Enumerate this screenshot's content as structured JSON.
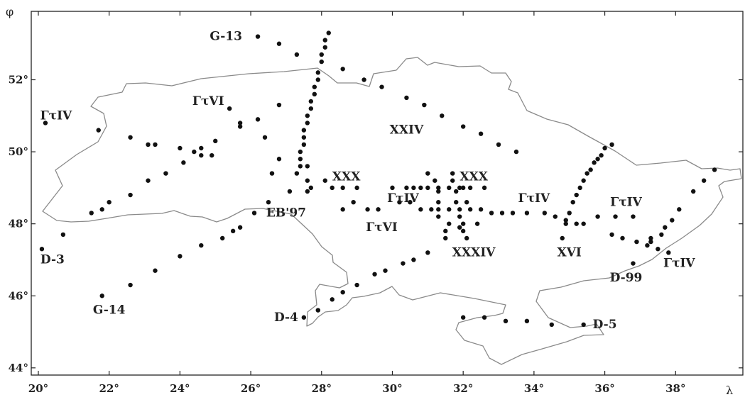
{
  "map": {
    "x_axis_name": "λ",
    "y_axis_name": "φ",
    "lon_range": [
      19.8,
      39.9
    ],
    "lat_range": [
      43.8,
      53.9
    ],
    "lon_ticks": [
      {
        "value": 20,
        "label": "20°"
      },
      {
        "value": 22,
        "label": "22°"
      },
      {
        "value": 24,
        "label": "24°"
      },
      {
        "value": 26,
        "label": "26°"
      },
      {
        "value": 28,
        "label": "28°"
      },
      {
        "value": 30,
        "label": "30°"
      },
      {
        "value": 32,
        "label": "32°"
      },
      {
        "value": 34,
        "label": "34°"
      },
      {
        "value": 36,
        "label": "36°"
      },
      {
        "value": 38,
        "label": "38°"
      }
    ],
    "lat_ticks": [
      {
        "value": 44,
        "label": "44°"
      },
      {
        "value": 46,
        "label": "46°"
      },
      {
        "value": 48,
        "label": "48°"
      },
      {
        "value": 50,
        "label": "50°"
      },
      {
        "value": 52,
        "label": "52°"
      }
    ],
    "colors": {
      "border": "#8a8a8a",
      "stations": "#111111",
      "frame": "#222222"
    }
  },
  "profiles": [
    {
      "label": "G-13",
      "lon": 25.3,
      "lat": 53.1
    },
    {
      "label": "ΓτIV",
      "lon": 20.5,
      "lat": 50.9
    },
    {
      "label": "ΓτVI",
      "lon": 24.8,
      "lat": 51.3
    },
    {
      "label": "XXIV",
      "lon": 30.4,
      "lat": 50.5
    },
    {
      "label": "XXX",
      "lon": 28.7,
      "lat": 49.2
    },
    {
      "label": "XXX",
      "lon": 32.3,
      "lat": 49.2
    },
    {
      "label": "ΓτIV",
      "lon": 30.3,
      "lat": 48.6
    },
    {
      "label": "ΓτIV",
      "lon": 34.0,
      "lat": 48.6
    },
    {
      "label": "ΓτIV",
      "lon": 36.6,
      "lat": 48.5
    },
    {
      "label": "EB'97",
      "lon": 27.0,
      "lat": 48.2
    },
    {
      "label": "ΓτVI",
      "lon": 29.7,
      "lat": 47.8
    },
    {
      "label": "XXXIV",
      "lon": 32.3,
      "lat": 47.1
    },
    {
      "label": "XVI",
      "lon": 35.0,
      "lat": 47.1
    },
    {
      "label": "D-3",
      "lon": 20.4,
      "lat": 46.9
    },
    {
      "label": "D-99",
      "lon": 36.6,
      "lat": 46.4
    },
    {
      "label": "ΓτIV",
      "lon": 38.1,
      "lat": 46.8
    },
    {
      "label": "G-14",
      "lon": 22.0,
      "lat": 45.5
    },
    {
      "label": "D-4",
      "lon": 27.0,
      "lat": 45.3
    },
    {
      "label": "D-5",
      "lon": 36.0,
      "lat": 45.1
    }
  ],
  "stations": [
    [
      20.2,
      50.8
    ],
    [
      20.1,
      47.3
    ],
    [
      20.7,
      47.7
    ],
    [
      21.5,
      48.3
    ],
    [
      21.8,
      48.4
    ],
    [
      22.0,
      48.6
    ],
    [
      22.6,
      48.8
    ],
    [
      23.1,
      49.2
    ],
    [
      23.6,
      49.4
    ],
    [
      24.1,
      49.7
    ],
    [
      24.6,
      49.9
    ],
    [
      24.9,
      49.9
    ],
    [
      25.0,
      50.3
    ],
    [
      25.7,
      50.7
    ],
    [
      26.2,
      50.9
    ],
    [
      26.4,
      50.4
    ],
    [
      26.6,
      49.4
    ],
    [
      26.8,
      49.8
    ],
    [
      27.1,
      48.9
    ],
    [
      27.6,
      48.9
    ],
    [
      21.7,
      50.6
    ],
    [
      22.6,
      50.4
    ],
    [
      23.1,
      50.2
    ],
    [
      23.3,
      50.2
    ],
    [
      24.0,
      50.1
    ],
    [
      24.4,
      50.0
    ],
    [
      24.6,
      50.1
    ],
    [
      25.4,
      51.2
    ],
    [
      25.7,
      50.8
    ],
    [
      26.8,
      51.3
    ],
    [
      21.8,
      46.0
    ],
    [
      22.6,
      46.3
    ],
    [
      23.3,
      46.7
    ],
    [
      24.0,
      47.1
    ],
    [
      24.6,
      47.4
    ],
    [
      25.2,
      47.6
    ],
    [
      25.5,
      47.8
    ],
    [
      25.7,
      47.9
    ],
    [
      26.1,
      48.3
    ],
    [
      26.5,
      48.6
    ],
    [
      26.2,
      53.2
    ],
    [
      26.8,
      53.0
    ],
    [
      27.3,
      52.7
    ],
    [
      28.6,
      52.3
    ],
    [
      29.2,
      52.0
    ],
    [
      29.7,
      51.8
    ],
    [
      30.4,
      51.5
    ],
    [
      30.9,
      51.3
    ],
    [
      31.4,
      51.0
    ],
    [
      32.0,
      50.7
    ],
    [
      32.5,
      50.5
    ],
    [
      33.0,
      50.2
    ],
    [
      33.5,
      50.0
    ],
    [
      28.2,
      53.3
    ],
    [
      28.1,
      53.1
    ],
    [
      28.1,
      52.9
    ],
    [
      28.0,
      52.7
    ],
    [
      28.0,
      52.5
    ],
    [
      27.9,
      52.2
    ],
    [
      27.9,
      52.0
    ],
    [
      27.8,
      51.8
    ],
    [
      27.8,
      51.6
    ],
    [
      27.7,
      51.4
    ],
    [
      27.7,
      51.2
    ],
    [
      27.6,
      51.0
    ],
    [
      27.6,
      50.8
    ],
    [
      27.5,
      50.6
    ],
    [
      27.5,
      50.4
    ],
    [
      27.5,
      50.2
    ],
    [
      27.4,
      50.0
    ],
    [
      27.4,
      49.8
    ],
    [
      27.4,
      49.6
    ],
    [
      27.3,
      49.4
    ],
    [
      27.6,
      49.6
    ],
    [
      27.6,
      49.2
    ],
    [
      27.7,
      49.0
    ],
    [
      28.1,
      49.2
    ],
    [
      28.3,
      49.0
    ],
    [
      28.6,
      49.0
    ],
    [
      29.0,
      49.0
    ],
    [
      28.6,
      48.4
    ],
    [
      28.9,
      48.6
    ],
    [
      29.3,
      48.4
    ],
    [
      29.6,
      48.4
    ],
    [
      30.0,
      49.0
    ],
    [
      30.4,
      49.0
    ],
    [
      30.6,
      49.0
    ],
    [
      30.8,
      49.0
    ],
    [
      31.0,
      49.0
    ],
    [
      31.3,
      49.0
    ],
    [
      31.6,
      49.0
    ],
    [
      31.9,
      49.0
    ],
    [
      32.2,
      49.0
    ],
    [
      30.2,
      48.6
    ],
    [
      30.5,
      48.6
    ],
    [
      30.8,
      48.4
    ],
    [
      31.1,
      48.4
    ],
    [
      31.3,
      48.4
    ],
    [
      31.6,
      48.4
    ],
    [
      31.9,
      48.4
    ],
    [
      32.2,
      48.4
    ],
    [
      32.5,
      48.4
    ],
    [
      32.8,
      48.3
    ],
    [
      33.1,
      48.3
    ],
    [
      33.4,
      48.3
    ],
    [
      33.8,
      48.3
    ],
    [
      34.3,
      48.3
    ],
    [
      34.6,
      48.2
    ],
    [
      34.9,
      48.1
    ],
    [
      35.2,
      48.0
    ],
    [
      35.4,
      48.0
    ],
    [
      31.0,
      49.4
    ],
    [
      31.2,
      49.2
    ],
    [
      31.3,
      48.9
    ],
    [
      31.3,
      48.6
    ],
    [
      31.3,
      48.2
    ],
    [
      31.5,
      47.8
    ],
    [
      31.5,
      47.6
    ],
    [
      31.6,
      48.0
    ],
    [
      31.7,
      49.4
    ],
    [
      31.7,
      49.2
    ],
    [
      31.8,
      48.9
    ],
    [
      31.8,
      48.6
    ],
    [
      31.9,
      48.2
    ],
    [
      31.9,
      47.9
    ],
    [
      32.0,
      48.0
    ],
    [
      32.0,
      47.8
    ],
    [
      32.1,
      47.6
    ],
    [
      32.1,
      48.6
    ],
    [
      32.0,
      49.0
    ],
    [
      32.4,
      48.0
    ],
    [
      32.6,
      49.0
    ],
    [
      34.9,
      48.0
    ],
    [
      35.0,
      48.3
    ],
    [
      35.1,
      48.6
    ],
    [
      35.2,
      48.8
    ],
    [
      35.3,
      49.0
    ],
    [
      35.4,
      49.2
    ],
    [
      35.5,
      49.4
    ],
    [
      35.6,
      49.5
    ],
    [
      35.7,
      49.7
    ],
    [
      35.8,
      49.8
    ],
    [
      35.9,
      49.9
    ],
    [
      36.0,
      50.1
    ],
    [
      36.2,
      50.2
    ],
    [
      35.8,
      48.2
    ],
    [
      36.3,
      48.2
    ],
    [
      36.8,
      48.2
    ],
    [
      36.2,
      47.7
    ],
    [
      36.5,
      47.6
    ],
    [
      36.9,
      47.5
    ],
    [
      37.2,
      47.4
    ],
    [
      37.3,
      47.6
    ],
    [
      37.5,
      47.3
    ],
    [
      37.6,
      47.7
    ],
    [
      37.7,
      47.9
    ],
    [
      37.9,
      48.1
    ],
    [
      38.1,
      48.4
    ],
    [
      38.5,
      48.9
    ],
    [
      38.8,
      49.2
    ],
    [
      39.1,
      49.5
    ],
    [
      34.8,
      47.6
    ],
    [
      36.8,
      46.9
    ],
    [
      37.3,
      47.5
    ],
    [
      37.8,
      47.2
    ],
    [
      27.5,
      45.4
    ],
    [
      27.9,
      45.6
    ],
    [
      28.3,
      45.9
    ],
    [
      28.6,
      46.1
    ],
    [
      29.0,
      46.3
    ],
    [
      29.5,
      46.6
    ],
    [
      29.8,
      46.7
    ],
    [
      30.3,
      46.9
    ],
    [
      30.6,
      47.0
    ],
    [
      31.0,
      47.2
    ],
    [
      32.0,
      45.4
    ],
    [
      32.6,
      45.4
    ],
    [
      33.2,
      45.3
    ],
    [
      33.8,
      45.3
    ],
    [
      34.5,
      45.2
    ],
    [
      35.4,
      45.2
    ]
  ]
}
